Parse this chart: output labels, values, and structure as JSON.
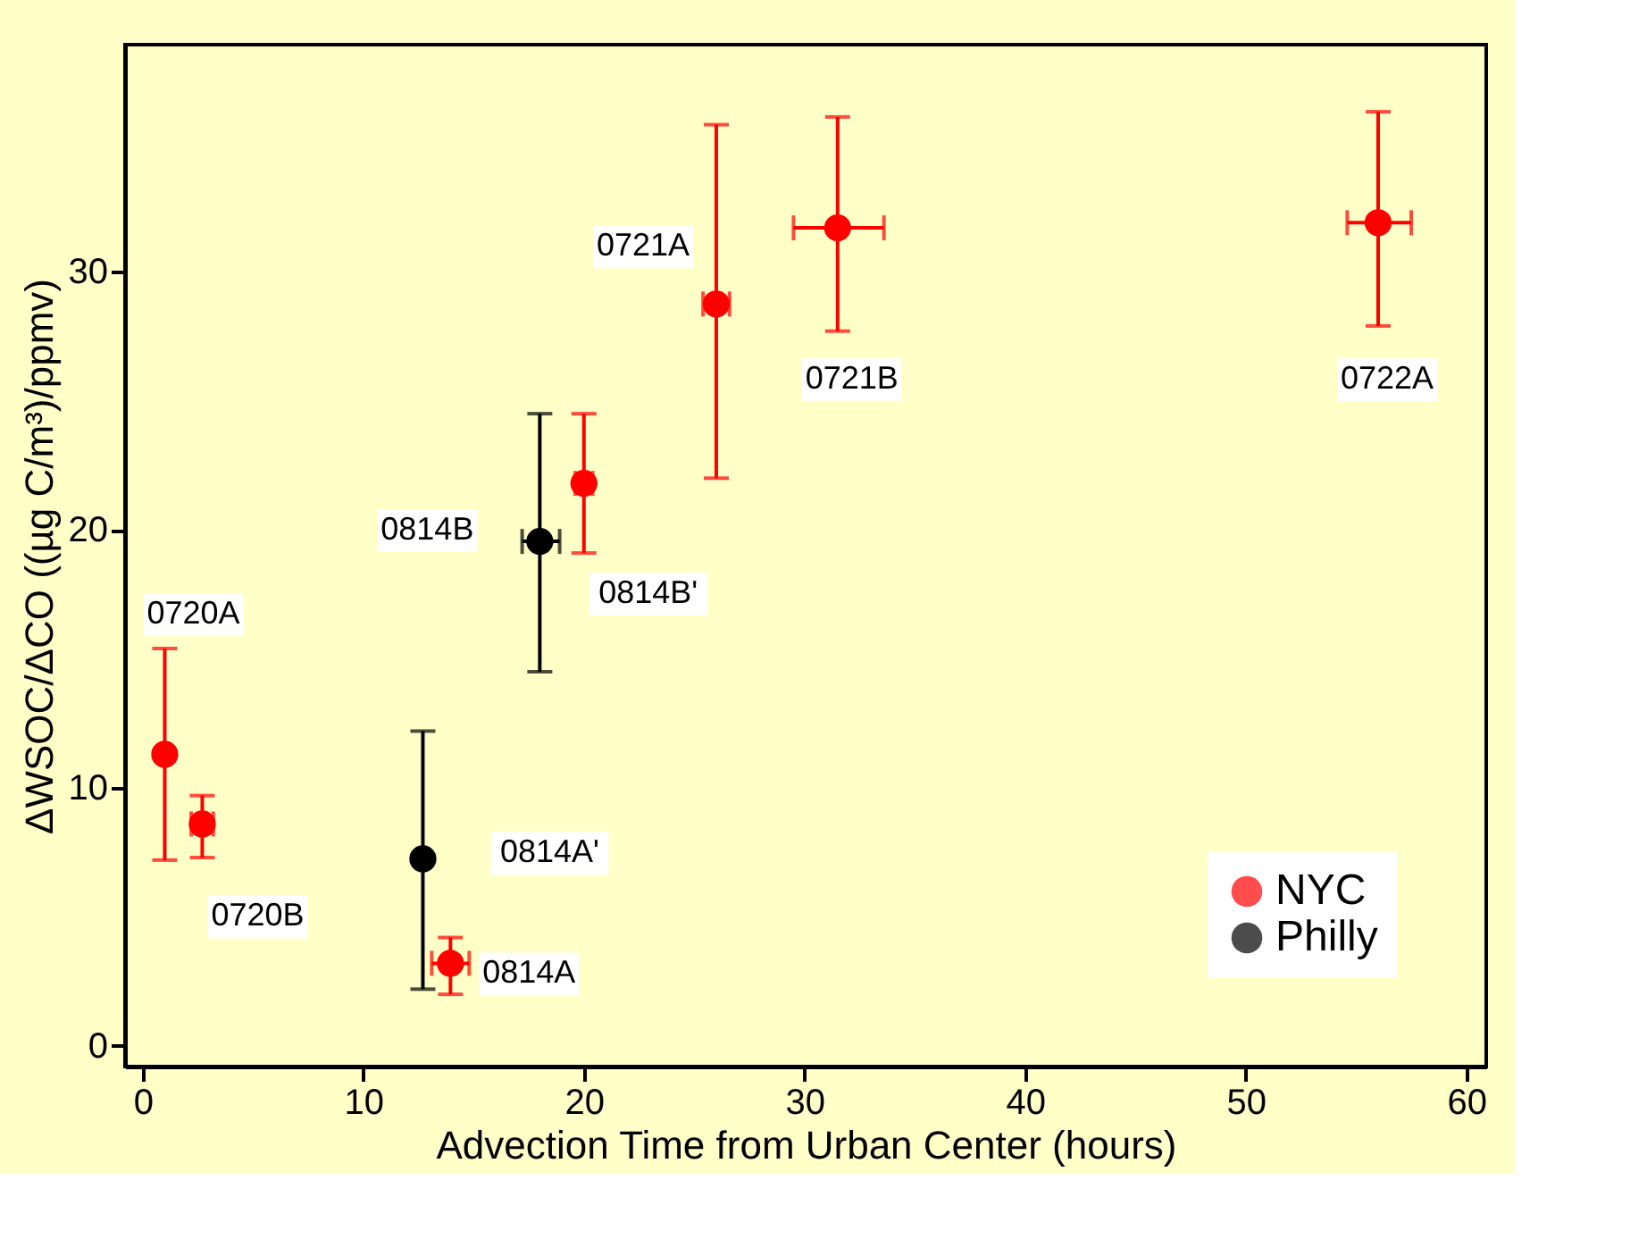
{
  "chart_data": {
    "type": "scatter",
    "xlabel": "Advection Time from Urban Center (hours)",
    "ylabel": "ΔWSOC/ΔCO ((µg C/m³)/ppmv)",
    "xlim": [
      -0.8,
      60.9
    ],
    "ylim": [
      -0.8,
      38.8
    ],
    "xticks": [
      0,
      10,
      20,
      30,
      40,
      50,
      60
    ],
    "yticks": [
      0,
      10,
      20,
      30
    ],
    "marker": "circle",
    "legend": "bottom right",
    "grid": false,
    "series": [
      {
        "name": "NYC",
        "color": "#ff0000",
        "x": [
          1.0,
          2.7,
          13.95,
          20.0,
          26.0,
          31.5,
          56.0
        ],
        "values": [
          11.3,
          8.6,
          3.2,
          21.8,
          28.75,
          31.7,
          31.9
        ],
        "errors": [
          [
            7.2,
            15.4
          ],
          [
            7.3,
            9.7
          ],
          [
            2.0,
            4.2
          ],
          [
            19.1,
            24.5
          ],
          [
            22.0,
            35.7
          ],
          [
            27.7,
            36.0
          ],
          [
            27.9,
            36.2
          ]
        ],
        "xerrors": [
          null,
          [
            2.2,
            3.2
          ],
          [
            13.1,
            14.8
          ],
          [
            19.6,
            20.4
          ],
          [
            25.4,
            26.6
          ],
          [
            29.5,
            33.6
          ],
          [
            54.6,
            57.5
          ]
        ]
      },
      {
        "name": "Philly",
        "color": "#000000",
        "x": [
          12.7,
          18.0
        ],
        "values": [
          7.25,
          19.55
        ],
        "errors": [
          [
            2.2,
            12.2
          ],
          [
            14.5,
            24.5
          ]
        ],
        "xerrors": [
          null,
          [
            17.2,
            18.9
          ]
        ]
      }
    ],
    "annotations": [
      {
        "text": "0720A",
        "x": 1.0,
        "y": 15.4
      },
      {
        "text": "0720B",
        "x": 2.7,
        "y": 8.6
      },
      {
        "text": "0814A'",
        "x": 12.7,
        "y": 7.25
      },
      {
        "text": "0814A",
        "x": 13.95,
        "y": 3.2
      },
      {
        "text": "0814B",
        "x": 18.0,
        "y": 19.55
      },
      {
        "text": "0814B'",
        "x": 20.0,
        "y": 21.8
      },
      {
        "text": "0721A",
        "x": 26.0,
        "y": 28.75
      },
      {
        "text": "0721B",
        "x": 31.5,
        "y": 27.7
      },
      {
        "text": "0722A",
        "x": 56.0,
        "y": 27.9
      }
    ]
  }
}
